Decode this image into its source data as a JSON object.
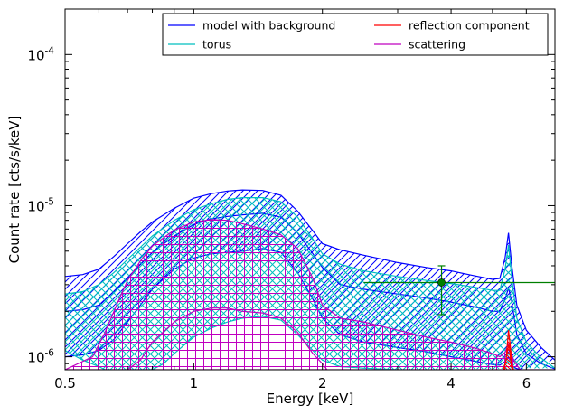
{
  "chart_data": {
    "type": "line",
    "xlabel": "Energy [keV]",
    "ylabel": "Count rate [cts/s/keV]",
    "xscale": "log",
    "yscale": "log",
    "xlim": [
      0.5,
      7.0
    ],
    "ylim": [
      8.2e-07,
      0.0002
    ],
    "x_ticks": [
      {
        "value": 0.5,
        "label": "0.5"
      },
      {
        "value": 1,
        "label": "1"
      },
      {
        "value": 2,
        "label": "2"
      },
      {
        "value": 4,
        "label": "4"
      },
      {
        "value": 6,
        "label": "6"
      }
    ],
    "y_ticks": [
      {
        "value": 1e-06,
        "base": "10",
        "exp": "-6"
      },
      {
        "value": 1e-05,
        "base": "10",
        "exp": "-5"
      },
      {
        "value": 0.0001,
        "base": "10",
        "exp": "-4"
      }
    ],
    "legend": {
      "placement": "top-right",
      "columns": 2,
      "entries": [
        {
          "label": "model with background",
          "color": "#0000ff"
        },
        {
          "label": "reflection component",
          "color": "#ff0000"
        },
        {
          "label": "torus",
          "color": "#00bfbf"
        },
        {
          "label": "scattering",
          "color": "#bf00bf"
        }
      ]
    },
    "series": [
      {
        "name": "model with background",
        "color": "#0000ff",
        "upper": [
          [
            0.5,
            3.4e-06
          ],
          [
            0.55,
            3.5e-06
          ],
          [
            0.6,
            3.8e-06
          ],
          [
            0.65,
            4.6e-06
          ],
          [
            0.7,
            5.6e-06
          ],
          [
            0.75,
            6.7e-06
          ],
          [
            0.8,
            7.8e-06
          ],
          [
            0.9,
            9.6e-06
          ],
          [
            1.0,
            1.12e-05
          ],
          [
            1.1,
            1.2e-05
          ],
          [
            1.2,
            1.25e-05
          ],
          [
            1.3,
            1.27e-05
          ],
          [
            1.45,
            1.26e-05
          ],
          [
            1.6,
            1.17e-05
          ],
          [
            1.75,
            9.2e-06
          ],
          [
            1.9,
            6.8e-06
          ],
          [
            2.0,
            5.6e-06
          ],
          [
            2.2,
            5.1e-06
          ],
          [
            2.5,
            4.7e-06
          ],
          [
            3.0,
            4.2e-06
          ],
          [
            3.5,
            3.9e-06
          ],
          [
            4.0,
            3.7e-06
          ],
          [
            4.5,
            3.45e-06
          ],
          [
            5.0,
            3.25e-06
          ],
          [
            5.2,
            3.3e-06
          ],
          [
            5.35,
            4.5e-06
          ],
          [
            5.45,
            6.6e-06
          ],
          [
            5.55,
            4e-06
          ],
          [
            5.7,
            2.2e-06
          ],
          [
            6.0,
            1.5e-06
          ],
          [
            6.5,
            1.15e-06
          ],
          [
            7.0,
            9.5e-07
          ]
        ],
        "middle": [
          [
            0.5,
            2e-06
          ],
          [
            0.55,
            2.05e-06
          ],
          [
            0.6,
            2.2e-06
          ],
          [
            0.65,
            2.7e-06
          ],
          [
            0.7,
            3.3e-06
          ],
          [
            0.75,
            4.1e-06
          ],
          [
            0.8,
            4.9e-06
          ],
          [
            0.9,
            6.3e-06
          ],
          [
            1.0,
            7.5e-06
          ],
          [
            1.1,
            8.2e-06
          ],
          [
            1.2,
            8.5e-06
          ],
          [
            1.3,
            8.7e-06
          ],
          [
            1.45,
            8.9e-06
          ],
          [
            1.6,
            8.4e-06
          ],
          [
            1.75,
            6.6e-06
          ],
          [
            1.9,
            4.8e-06
          ],
          [
            2.0,
            3.9e-06
          ],
          [
            2.2,
            3e-06
          ],
          [
            2.5,
            2.8e-06
          ],
          [
            3.0,
            2.6e-06
          ],
          [
            3.5,
            2.45e-06
          ],
          [
            4.0,
            2.3e-06
          ],
          [
            4.5,
            2.15e-06
          ],
          [
            5.0,
            2e-06
          ],
          [
            5.2,
            2e-06
          ],
          [
            5.35,
            2.4e-06
          ],
          [
            5.45,
            2.85e-06
          ],
          [
            5.55,
            2.3e-06
          ],
          [
            5.7,
            1.4e-06
          ],
          [
            6.0,
            1.05e-06
          ],
          [
            6.5,
            9e-07
          ],
          [
            7.0,
            8.3e-07
          ]
        ],
        "lower": [
          [
            0.5,
            1e-06
          ],
          [
            0.55,
            1.03e-06
          ],
          [
            0.6,
            1.1e-06
          ],
          [
            0.65,
            1.3e-06
          ],
          [
            0.7,
            1.7e-06
          ],
          [
            0.75,
            2.2e-06
          ],
          [
            0.8,
            2.8e-06
          ],
          [
            0.9,
            3.8e-06
          ],
          [
            1.0,
            4.5e-06
          ],
          [
            1.1,
            4.8e-06
          ],
          [
            1.2,
            4.9e-06
          ],
          [
            1.3,
            5e-06
          ],
          [
            1.45,
            5.2e-06
          ],
          [
            1.6,
            4.9e-06
          ],
          [
            1.75,
            3.6e-06
          ],
          [
            1.9,
            2.4e-06
          ],
          [
            2.0,
            1.8e-06
          ],
          [
            2.2,
            1.4e-06
          ],
          [
            2.5,
            1.25e-06
          ],
          [
            3.0,
            1.15e-06
          ],
          [
            3.5,
            1.08e-06
          ],
          [
            4.0,
            1e-06
          ],
          [
            4.5,
            9.4e-07
          ],
          [
            5.0,
            8.9e-07
          ],
          [
            5.2,
            8.8e-07
          ],
          [
            5.35,
            9.3e-07
          ],
          [
            5.45,
            1e-06
          ],
          [
            5.6,
            8.5e-07
          ],
          [
            5.8,
            8.2e-07
          ]
        ]
      },
      {
        "name": "torus",
        "color": "#00bfbf",
        "upper": [
          [
            0.5,
            2.6e-06
          ],
          [
            0.55,
            2.7e-06
          ],
          [
            0.6,
            3e-06
          ],
          [
            0.65,
            3.6e-06
          ],
          [
            0.7,
            4.4e-06
          ],
          [
            0.75,
            5.3e-06
          ],
          [
            0.8,
            6.3e-06
          ],
          [
            0.9,
            8e-06
          ],
          [
            1.0,
            9.4e-06
          ],
          [
            1.1,
            1.03e-05
          ],
          [
            1.2,
            1.1e-05
          ],
          [
            1.3,
            1.13e-05
          ],
          [
            1.45,
            1.13e-05
          ],
          [
            1.6,
            1.06e-05
          ],
          [
            1.75,
            8.4e-06
          ],
          [
            1.9,
            6e-06
          ],
          [
            2.0,
            4.8e-06
          ],
          [
            2.2,
            4.1e-06
          ],
          [
            2.5,
            3.7e-06
          ],
          [
            3.0,
            3.4e-06
          ],
          [
            3.5,
            3.2e-06
          ],
          [
            4.0,
            3.05e-06
          ],
          [
            4.5,
            2.9e-06
          ],
          [
            5.0,
            2.75e-06
          ],
          [
            5.2,
            2.75e-06
          ],
          [
            5.35,
            3.8e-06
          ],
          [
            5.45,
            5.5e-06
          ],
          [
            5.55,
            3.3e-06
          ],
          [
            5.7,
            1.8e-06
          ],
          [
            6.0,
            1.25e-06
          ],
          [
            6.5,
            9.8e-07
          ],
          [
            7.0,
            8.4e-07
          ]
        ],
        "lower": [
          [
            0.5,
            1.1e-06
          ],
          [
            0.55,
            9.5e-07
          ],
          [
            0.6,
            8.6e-07
          ],
          [
            0.62,
            8.2e-07
          ],
          [
            0.8,
            8.2e-07
          ],
          [
            0.85,
            9e-07
          ],
          [
            0.9,
            1.05e-06
          ],
          [
            1.0,
            1.35e-06
          ],
          [
            1.1,
            1.55e-06
          ],
          [
            1.2,
            1.7e-06
          ],
          [
            1.3,
            1.8e-06
          ],
          [
            1.45,
            1.85e-06
          ],
          [
            1.6,
            1.75e-06
          ],
          [
            1.75,
            1.4e-06
          ],
          [
            1.9,
            1.1e-06
          ],
          [
            2.0,
            9.5e-07
          ],
          [
            2.2,
            8.6e-07
          ],
          [
            2.5,
            8.4e-07
          ],
          [
            3.0,
            8.2e-07
          ]
        ]
      },
      {
        "name": "scattering",
        "color": "#bf00bf",
        "upper": [
          [
            0.5,
            8.2e-07
          ],
          [
            0.58,
            1e-06
          ],
          [
            0.62,
            1.45e-06
          ],
          [
            0.66,
            2.2e-06
          ],
          [
            0.7,
            3.2e-06
          ],
          [
            0.75,
            4.3e-06
          ],
          [
            0.8,
            5.4e-06
          ],
          [
            0.9,
            6.9e-06
          ],
          [
            1.0,
            7.8e-06
          ],
          [
            1.1,
            8.1e-06
          ],
          [
            1.2,
            8e-06
          ],
          [
            1.3,
            7.6e-06
          ],
          [
            1.45,
            7e-06
          ],
          [
            1.6,
            6.4e-06
          ],
          [
            1.75,
            5.2e-06
          ],
          [
            1.9,
            3.3e-06
          ],
          [
            2.0,
            2.2e-06
          ],
          [
            2.2,
            1.8e-06
          ],
          [
            2.5,
            1.7e-06
          ],
          [
            3.0,
            1.5e-06
          ],
          [
            3.5,
            1.35e-06
          ],
          [
            4.0,
            1.25e-06
          ],
          [
            4.5,
            1.15e-06
          ],
          [
            5.0,
            1.05e-06
          ],
          [
            5.2,
            1e-06
          ],
          [
            5.35,
            1.07e-06
          ],
          [
            5.45,
            1.22e-06
          ],
          [
            5.6,
            9.5e-07
          ],
          [
            5.8,
            8.2e-07
          ]
        ],
        "middle": [
          [
            0.7,
            8.2e-07
          ],
          [
            0.75,
            9.5e-07
          ],
          [
            0.8,
            1.25e-06
          ],
          [
            0.9,
            1.7e-06
          ],
          [
            1.0,
            2e-06
          ],
          [
            1.1,
            2.1e-06
          ],
          [
            1.2,
            2.1e-06
          ],
          [
            1.3,
            2e-06
          ],
          [
            1.45,
            1.95e-06
          ],
          [
            1.6,
            1.8e-06
          ],
          [
            1.75,
            1.45e-06
          ],
          [
            1.9,
            1.05e-06
          ],
          [
            2.0,
            9e-07
          ],
          [
            2.05,
            8.2e-07
          ]
        ],
        "lower": [
          [
            0.5,
            8.2e-07
          ],
          [
            7.0,
            8.2e-07
          ]
        ]
      },
      {
        "name": "reflection component",
        "color": "#ff0000",
        "upper": [
          [
            5.3,
            8.2e-07
          ],
          [
            5.38,
            9.5e-07
          ],
          [
            5.45,
            1.5e-06
          ],
          [
            5.5,
            1.2e-06
          ],
          [
            5.55,
            9e-07
          ],
          [
            5.6,
            8.2e-07
          ]
        ],
        "middle": [
          [
            5.33,
            8.2e-07
          ],
          [
            5.42,
            1.1e-06
          ],
          [
            5.47,
            1.2e-06
          ],
          [
            5.53,
            8.8e-07
          ],
          [
            5.56,
            8.2e-07
          ]
        ]
      }
    ],
    "data_points": [
      {
        "x": 3.8,
        "y": 3.1e-06,
        "yerr_low": 1.9e-06,
        "yerr_high": 4e-06,
        "x_low": 2.5,
        "x_high": 7.0,
        "color": "#007f00"
      }
    ]
  }
}
